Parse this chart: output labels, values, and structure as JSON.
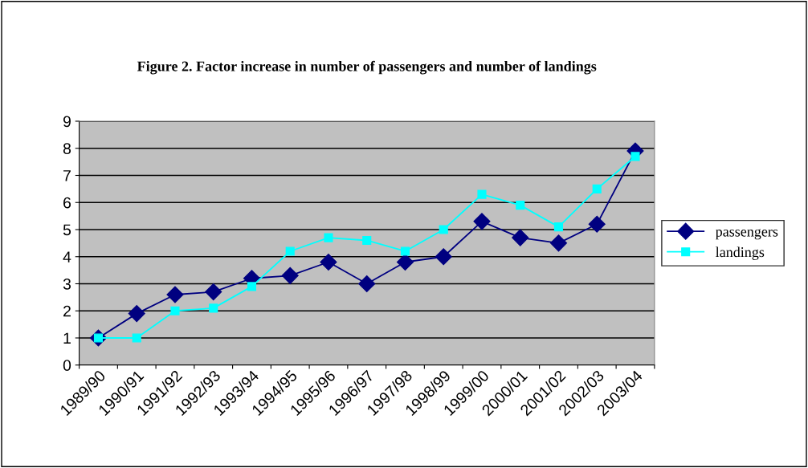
{
  "chart_data": {
    "type": "line",
    "title": "Figure 2. Factor increase in number of passengers and number of landings",
    "categories": [
      "1989/90",
      "1990/91",
      "1991/92",
      "1992/93",
      "1993/94",
      "1994/95",
      "1995/96",
      "1996/97",
      "1997/98",
      "1998/99",
      "1999/00",
      "2000/01",
      "2001/02",
      "2002/03",
      "2003/04"
    ],
    "series": [
      {
        "name": "passengers",
        "color": "#000080",
        "marker": "diamond",
        "values": [
          1.0,
          1.9,
          2.6,
          2.7,
          3.2,
          3.3,
          3.8,
          3.0,
          3.8,
          4.0,
          5.3,
          4.7,
          4.5,
          5.2,
          7.9
        ]
      },
      {
        "name": "landings",
        "color": "#00ffff",
        "marker": "square",
        "values": [
          1.0,
          1.0,
          2.0,
          2.1,
          2.9,
          4.2,
          4.7,
          4.6,
          4.2,
          5.0,
          6.3,
          5.9,
          5.1,
          6.5,
          7.7
        ]
      }
    ],
    "ylim": [
      0,
      9
    ],
    "yticks": [
      0,
      1,
      2,
      3,
      4,
      5,
      6,
      7,
      8,
      9
    ],
    "grid": "y",
    "legend": "right",
    "line_style": "solid"
  }
}
